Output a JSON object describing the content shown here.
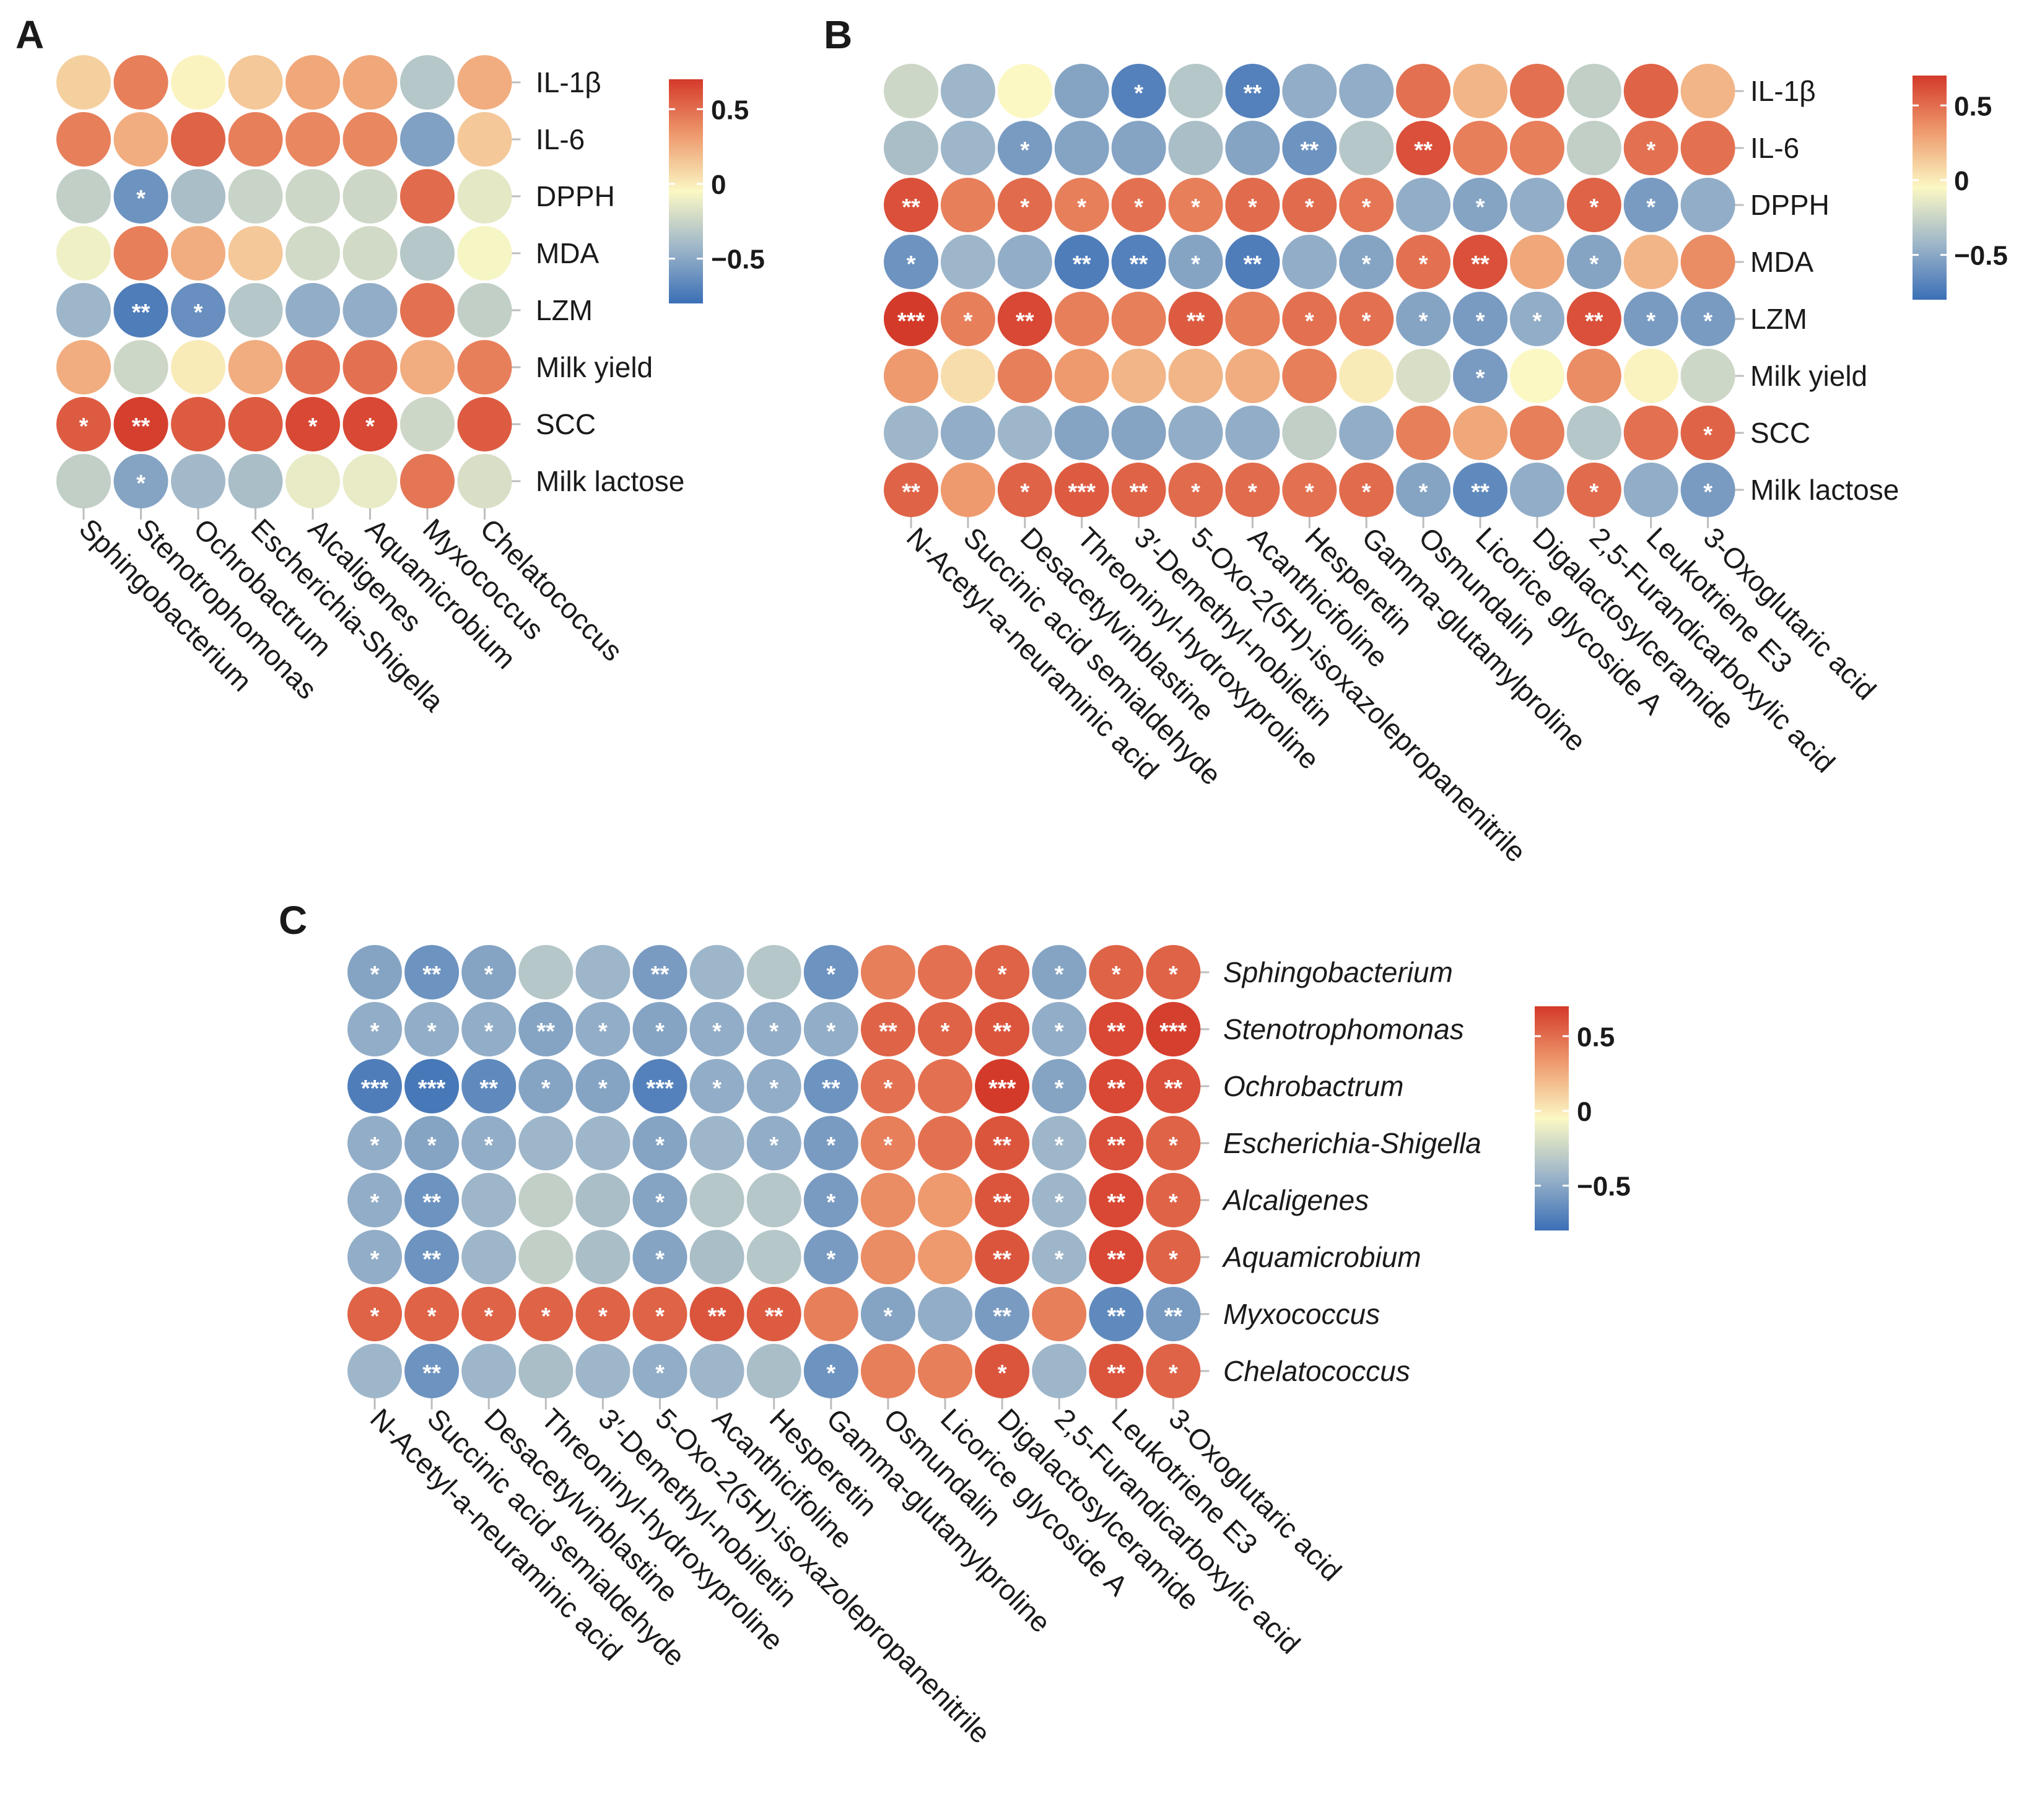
{
  "chart_data": [
    {
      "panel": "A",
      "type": "heatmap",
      "title": "",
      "row_italic": false,
      "colorbar": {
        "range": [
          -0.8,
          0.7
        ],
        "ticks": [
          "0.5",
          "0",
          "−0.5"
        ]
      },
      "rows": [
        "IL-1β",
        "IL-6",
        "DPPH",
        "MDA",
        "LZM",
        "Milk yield",
        "SCC",
        "Milk lactose"
      ],
      "columns": [
        "Sphingobacterium",
        "Stenotrophomonas",
        "Ochrobactrum",
        "Escherichia-Shigella",
        "Alcaligenes",
        "Aquamicrobium",
        "Myxococcus",
        "Chelatococcus"
      ],
      "values": [
        [
          0.15,
          0.45,
          0.02,
          0.18,
          0.3,
          0.3,
          -0.3,
          0.28
        ],
        [
          0.45,
          0.28,
          0.55,
          0.45,
          0.42,
          0.42,
          -0.52,
          0.18
        ],
        [
          -0.25,
          -0.6,
          -0.35,
          -0.22,
          -0.2,
          -0.2,
          0.52,
          -0.1
        ],
        [
          -0.05,
          0.45,
          0.28,
          0.18,
          -0.18,
          -0.18,
          -0.3,
          -0.02
        ],
        [
          -0.4,
          -0.72,
          -0.62,
          -0.3,
          -0.45,
          -0.45,
          0.5,
          -0.25
        ],
        [
          0.28,
          -0.2,
          0.05,
          0.28,
          0.5,
          0.5,
          0.28,
          0.45
        ],
        [
          0.58,
          0.68,
          0.58,
          0.58,
          0.65,
          0.65,
          -0.2,
          0.58
        ],
        [
          -0.25,
          -0.5,
          -0.38,
          -0.35,
          -0.08,
          -0.08,
          0.48,
          -0.15
        ]
      ],
      "stars": [
        [
          "",
          "",
          "",
          "",
          "",
          "",
          "",
          ""
        ],
        [
          "",
          "",
          "",
          "",
          "",
          "",
          "",
          ""
        ],
        [
          "",
          "*",
          "",
          "",
          "",
          "",
          "",
          ""
        ],
        [
          "",
          "",
          "",
          "",
          "",
          "",
          "",
          ""
        ],
        [
          "",
          "**",
          "*",
          "",
          "",
          "",
          "",
          ""
        ],
        [
          "",
          "",
          "",
          "",
          "",
          "",
          "",
          ""
        ],
        [
          "*",
          "**",
          "",
          "",
          "*",
          "*",
          "",
          ""
        ],
        [
          "",
          "*",
          "",
          "",
          "",
          "",
          "",
          ""
        ]
      ]
    },
    {
      "panel": "B",
      "type": "heatmap",
      "title": "",
      "row_italic": false,
      "colorbar": {
        "range": [
          -0.8,
          0.7
        ],
        "ticks": [
          "0.5",
          "0",
          "−0.5"
        ]
      },
      "rows": [
        "IL-1β",
        "IL-6",
        "DPPH",
        "MDA",
        "LZM",
        "Milk yield",
        "SCC",
        "Milk lactose"
      ],
      "columns": [
        "N-Acetyl-a-neuraminic acid",
        "Succinic acid semialdehyde",
        "Desacetylvinblastine",
        "Threoninyl-hydroxyproline",
        "3′-Demethyl-nobiletin",
        "5-Oxo-2(5H)-isoxazolepropanenitrile",
        "Acanthicifoline",
        "Hesperetin",
        "Gamma-glutamylproline",
        "Osmundalin",
        "Licorice glycoside A",
        "Digalactosylceramide",
        "2,5-Furandicarboxylic acid",
        "Leukotriene E3",
        "3-Oxoglutaric acid"
      ],
      "values": [
        [
          -0.2,
          -0.4,
          0.0,
          -0.5,
          -0.7,
          -0.3,
          -0.7,
          -0.45,
          -0.45,
          0.5,
          0.25,
          0.5,
          -0.25,
          0.55,
          0.25
        ],
        [
          -0.35,
          -0.4,
          -0.55,
          -0.5,
          -0.5,
          -0.35,
          -0.5,
          -0.6,
          -0.3,
          0.62,
          0.45,
          0.45,
          -0.25,
          0.5,
          0.5
        ],
        [
          0.62,
          0.45,
          0.52,
          0.45,
          0.5,
          0.45,
          0.52,
          0.52,
          0.48,
          -0.45,
          -0.5,
          -0.45,
          0.55,
          -0.55,
          -0.45
        ],
        [
          -0.6,
          -0.4,
          -0.45,
          -0.72,
          -0.7,
          -0.5,
          -0.72,
          -0.45,
          -0.5,
          0.5,
          0.62,
          0.3,
          -0.5,
          0.25,
          0.4
        ],
        [
          0.7,
          0.45,
          0.65,
          0.45,
          0.45,
          0.58,
          0.45,
          0.5,
          0.5,
          -0.5,
          -0.55,
          -0.45,
          0.62,
          -0.55,
          -0.55
        ],
        [
          0.35,
          0.1,
          0.45,
          0.35,
          0.25,
          0.25,
          0.28,
          0.45,
          0.05,
          -0.15,
          -0.55,
          0.0,
          0.4,
          0.02,
          -0.2
        ],
        [
          -0.4,
          -0.45,
          -0.4,
          -0.5,
          -0.5,
          -0.45,
          -0.45,
          -0.25,
          -0.45,
          0.45,
          0.3,
          0.45,
          -0.3,
          0.5,
          0.55
        ],
        [
          0.55,
          0.35,
          0.55,
          0.58,
          0.55,
          0.52,
          0.52,
          0.5,
          0.52,
          -0.5,
          -0.65,
          -0.45,
          0.52,
          -0.45,
          -0.55
        ]
      ],
      "stars": [
        [
          "",
          "",
          "",
          "",
          "*",
          "",
          "**",
          "",
          "",
          "",
          "",
          "",
          "",
          "",
          ""
        ],
        [
          "",
          "",
          "*",
          "",
          "",
          "",
          "",
          "**",
          "",
          "**",
          "",
          "",
          "",
          "*",
          ""
        ],
        [
          "**",
          "",
          "*",
          "*",
          "*",
          "*",
          "*",
          "*",
          "*",
          "",
          "*",
          "",
          "*",
          "*",
          ""
        ],
        [
          "*",
          "",
          "",
          "**",
          "**",
          "*",
          "**",
          "",
          "*",
          "*",
          "**",
          "",
          "*",
          "",
          ""
        ],
        [
          "***",
          "*",
          "**",
          "",
          "",
          "**",
          "",
          "*",
          "*",
          "*",
          "*",
          "*",
          "**",
          "*",
          "*"
        ],
        [
          "",
          "",
          "",
          "",
          "",
          "",
          "",
          "",
          "",
          "",
          "*",
          "",
          "",
          "",
          ""
        ],
        [
          "",
          "",
          "",
          "",
          "",
          "",
          "",
          "",
          "",
          "",
          "",
          "",
          "",
          "",
          "*"
        ],
        [
          "**",
          "",
          "*",
          "***",
          "**",
          "*",
          "*",
          "*",
          "*",
          "*",
          "**",
          "",
          "*",
          "",
          "*"
        ]
      ]
    },
    {
      "panel": "C",
      "type": "heatmap",
      "title": "",
      "row_italic": true,
      "colorbar": {
        "range": [
          -0.8,
          0.7
        ],
        "ticks": [
          "0.5",
          "0",
          "−0.5"
        ]
      },
      "rows": [
        "Sphingobacterium",
        "Stenotrophomonas",
        "Ochrobactrum",
        "Escherichia-Shigella",
        "Alcaligenes",
        "Aquamicrobium",
        "Myxococcus",
        "Chelatococcus"
      ],
      "columns": [
        "N-Acetyl-a-neuraminic acid",
        "Succinic acid semialdehyde",
        "Desacetylvinblastine",
        "Threoninyl-hydroxyproline",
        "3′-Demethyl-nobiletin",
        "5-Oxo-2(5H)-isoxazolepropanenitrile",
        "Acanthicifoline",
        "Hesperetin",
        "Gamma-glutamylproline",
        "Osmundalin",
        "Licorice glycoside A",
        "Digalactosylceramide",
        "2,5-Furandicarboxylic acid",
        "Leukotriene E3",
        "3-Oxoglutaric acid"
      ],
      "values": [
        [
          -0.5,
          -0.6,
          -0.5,
          -0.3,
          -0.4,
          -0.55,
          -0.4,
          -0.3,
          -0.6,
          0.45,
          0.5,
          0.55,
          -0.5,
          0.55,
          0.55
        ],
        [
          -0.45,
          -0.45,
          -0.45,
          -0.5,
          -0.45,
          -0.5,
          -0.45,
          -0.45,
          -0.45,
          0.55,
          0.55,
          0.6,
          -0.45,
          0.65,
          0.68
        ],
        [
          -0.72,
          -0.75,
          -0.65,
          -0.5,
          -0.5,
          -0.7,
          -0.45,
          -0.45,
          -0.6,
          0.5,
          0.5,
          0.7,
          -0.5,
          0.65,
          0.62
        ],
        [
          -0.45,
          -0.5,
          -0.45,
          -0.4,
          -0.4,
          -0.5,
          -0.4,
          -0.45,
          -0.55,
          0.45,
          0.5,
          0.6,
          -0.4,
          0.62,
          0.55
        ],
        [
          -0.45,
          -0.6,
          -0.4,
          -0.25,
          -0.35,
          -0.5,
          -0.3,
          -0.3,
          -0.55,
          0.4,
          0.35,
          0.6,
          -0.4,
          0.65,
          0.55
        ],
        [
          -0.45,
          -0.6,
          -0.4,
          -0.25,
          -0.35,
          -0.5,
          -0.35,
          -0.3,
          -0.55,
          0.4,
          0.35,
          0.6,
          -0.4,
          0.65,
          0.55
        ],
        [
          0.55,
          0.55,
          0.55,
          0.55,
          0.55,
          0.55,
          0.6,
          0.58,
          0.45,
          -0.5,
          -0.45,
          -0.55,
          0.45,
          -0.65,
          -0.55
        ],
        [
          -0.4,
          -0.6,
          -0.4,
          -0.35,
          -0.4,
          -0.45,
          -0.4,
          -0.35,
          -0.6,
          0.45,
          0.45,
          0.6,
          -0.4,
          0.6,
          0.55
        ]
      ],
      "stars": [
        [
          "*",
          "**",
          "*",
          "",
          "",
          "**",
          "",
          "",
          "*",
          "",
          "",
          "*",
          "*",
          "*",
          "*"
        ],
        [
          "*",
          "*",
          "*",
          "**",
          "*",
          "*",
          "*",
          "*",
          "*",
          "**",
          "*",
          "**",
          "*",
          "**",
          "***"
        ],
        [
          "***",
          "***",
          "**",
          "*",
          "*",
          "***",
          "*",
          "*",
          "**",
          "*",
          "",
          "***",
          "*",
          "**",
          "**"
        ],
        [
          "*",
          "*",
          "*",
          "",
          "",
          "*",
          "",
          "*",
          "*",
          "*",
          "",
          "**",
          "*",
          "**",
          "*"
        ],
        [
          "*",
          "**",
          "",
          "",
          "",
          "*",
          "",
          "",
          "*",
          "",
          "",
          "**",
          "*",
          "**",
          "*"
        ],
        [
          "*",
          "**",
          "",
          "",
          "",
          "*",
          "",
          "",
          "*",
          "",
          "",
          "**",
          "*",
          "**",
          "*"
        ],
        [
          "*",
          "*",
          "*",
          "*",
          "*",
          "*",
          "**",
          "**",
          "",
          "*",
          "",
          "**",
          "",
          "**",
          "**"
        ],
        [
          "",
          "**",
          "",
          "",
          "",
          "*",
          "",
          "",
          "*",
          "",
          "",
          "*",
          "",
          "**",
          "*"
        ]
      ]
    }
  ]
}
